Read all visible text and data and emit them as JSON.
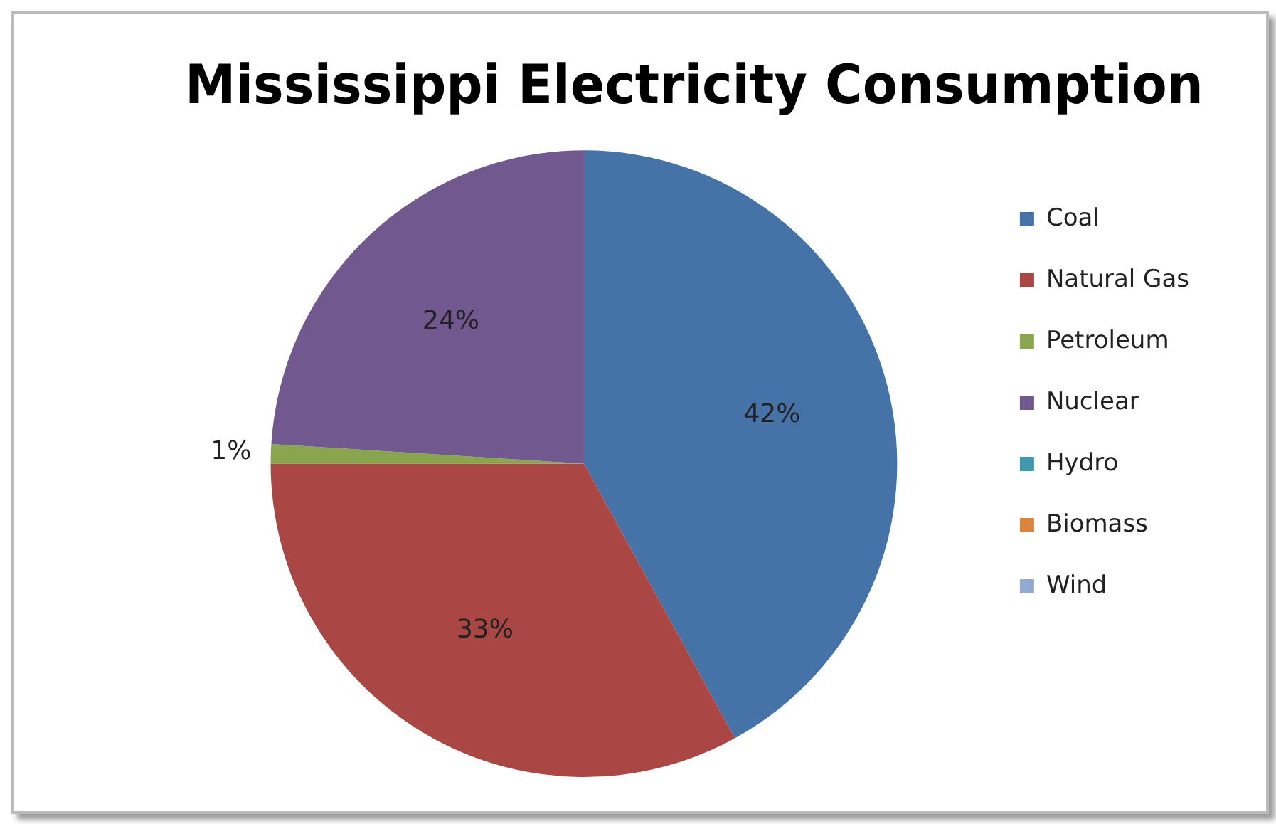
{
  "chart_data": {
    "type": "pie",
    "title": "Mississippi Electricity Consumption",
    "categories": [
      "Coal",
      "Natural Gas",
      "Petroleum",
      "Nuclear",
      "Hydro",
      "Biomass",
      "Wind"
    ],
    "values": [
      42,
      33,
      1,
      24,
      0,
      0,
      0
    ],
    "value_labels": [
      "42%",
      "33%",
      "1%",
      "24%",
      null,
      null,
      null
    ],
    "colors": [
      "#4572a7",
      "#aa4643",
      "#89a54e",
      "#71588f",
      "#4198af",
      "#db843d",
      "#93a9cf"
    ],
    "legend": "right"
  }
}
